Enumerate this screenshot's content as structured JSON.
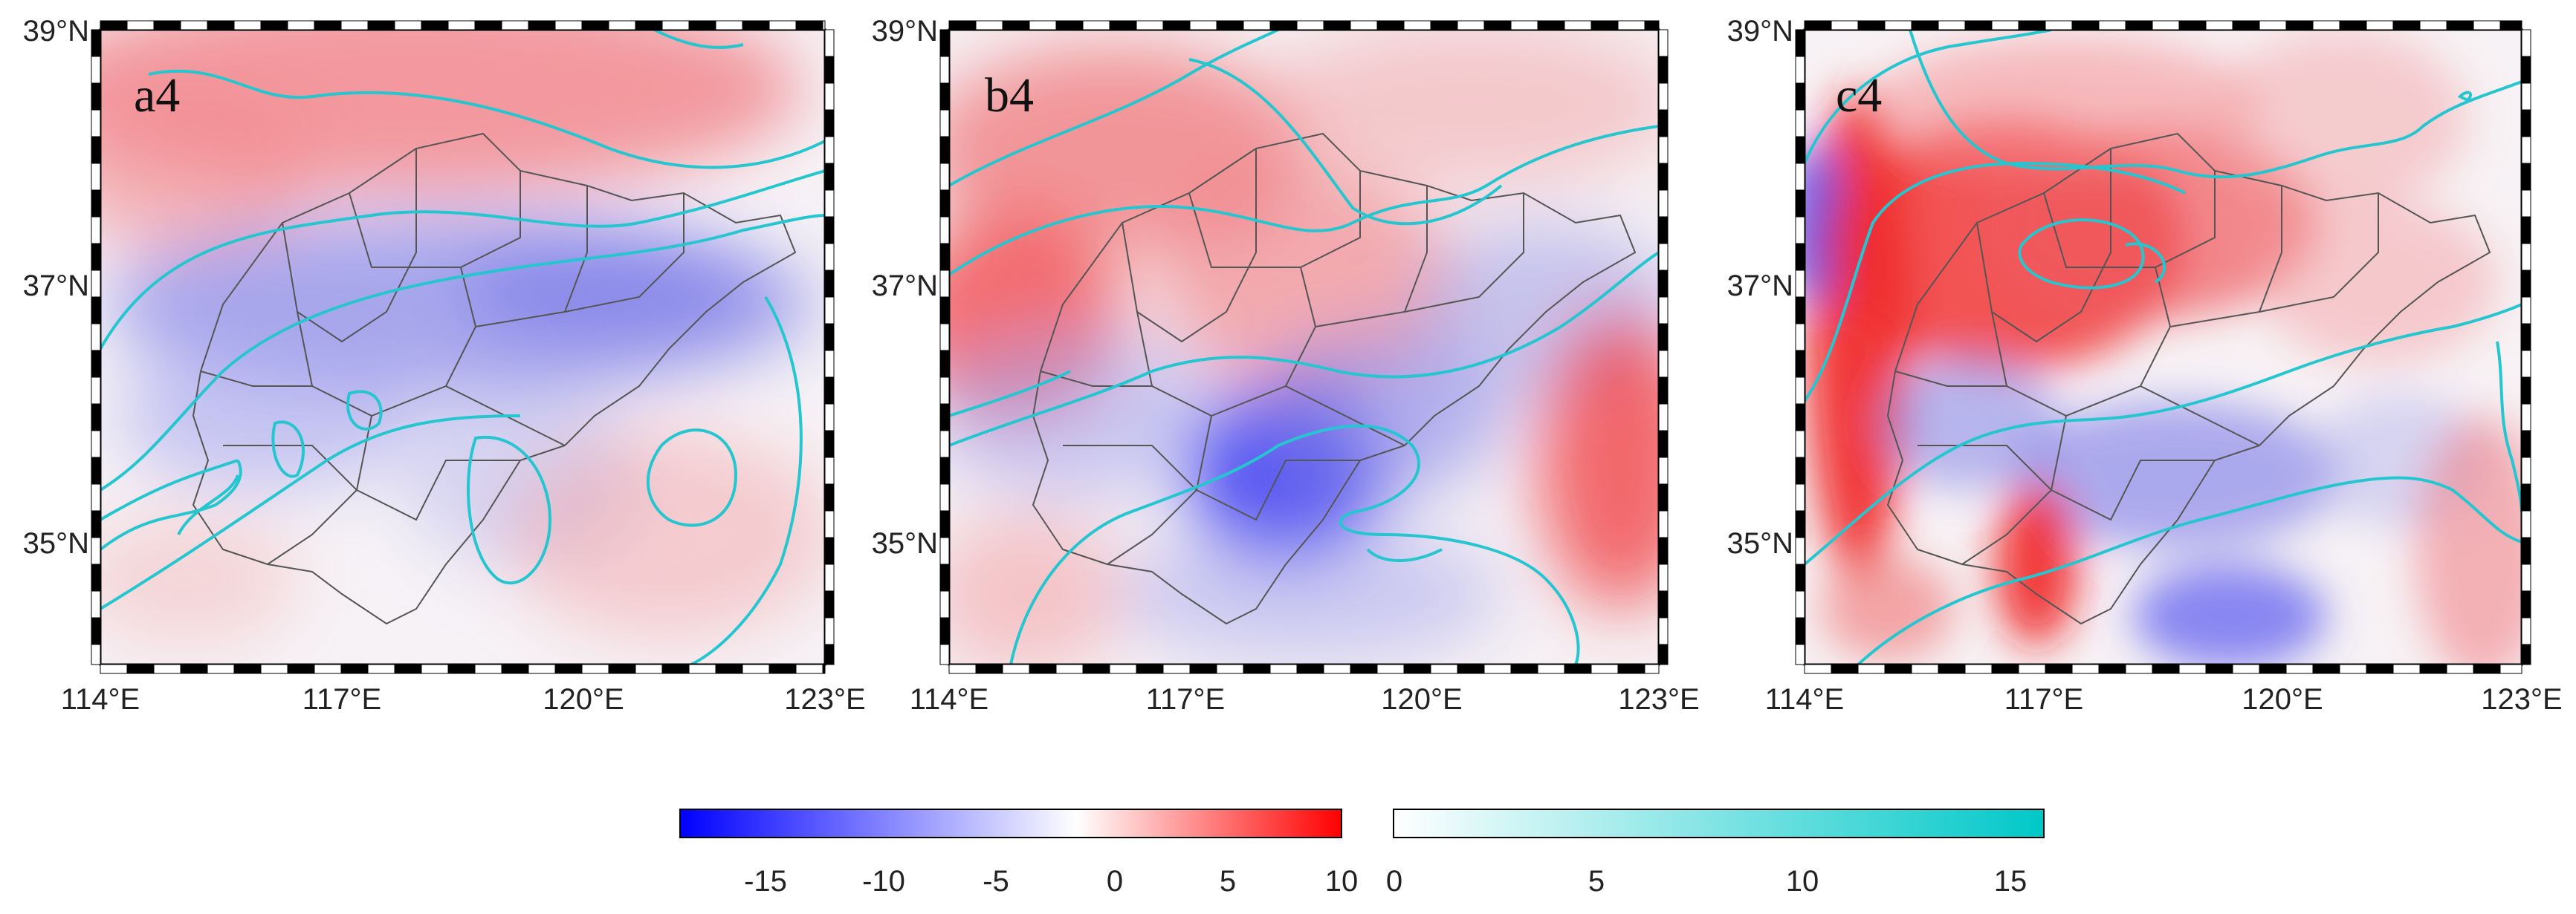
{
  "panels": [
    {
      "id": "a4",
      "label": "a4"
    },
    {
      "id": "b4",
      "label": "b4"
    },
    {
      "id": "c4",
      "label": "c4"
    }
  ],
  "axes": {
    "lat_labels": [
      "39°N",
      "37°N",
      "35°N"
    ],
    "lon_labels": [
      "114°E",
      "117°E",
      "120°E",
      "123°E"
    ]
  },
  "colorbar_diverging": {
    "ticks": [
      "-15",
      "-10",
      "-5",
      "0",
      "5",
      "10"
    ],
    "colors": [
      "#0000ff",
      "#ffffff",
      "#ff0000"
    ]
  },
  "colorbar_contour": {
    "ticks": [
      "0",
      "5",
      "10",
      "15"
    ],
    "colors": [
      "#ffffff",
      "#00c8c8"
    ]
  },
  "colors": {
    "contour": "#25c6cf",
    "boundary": "#555555",
    "warm": "#ff0000",
    "cool": "#0000ff"
  }
}
